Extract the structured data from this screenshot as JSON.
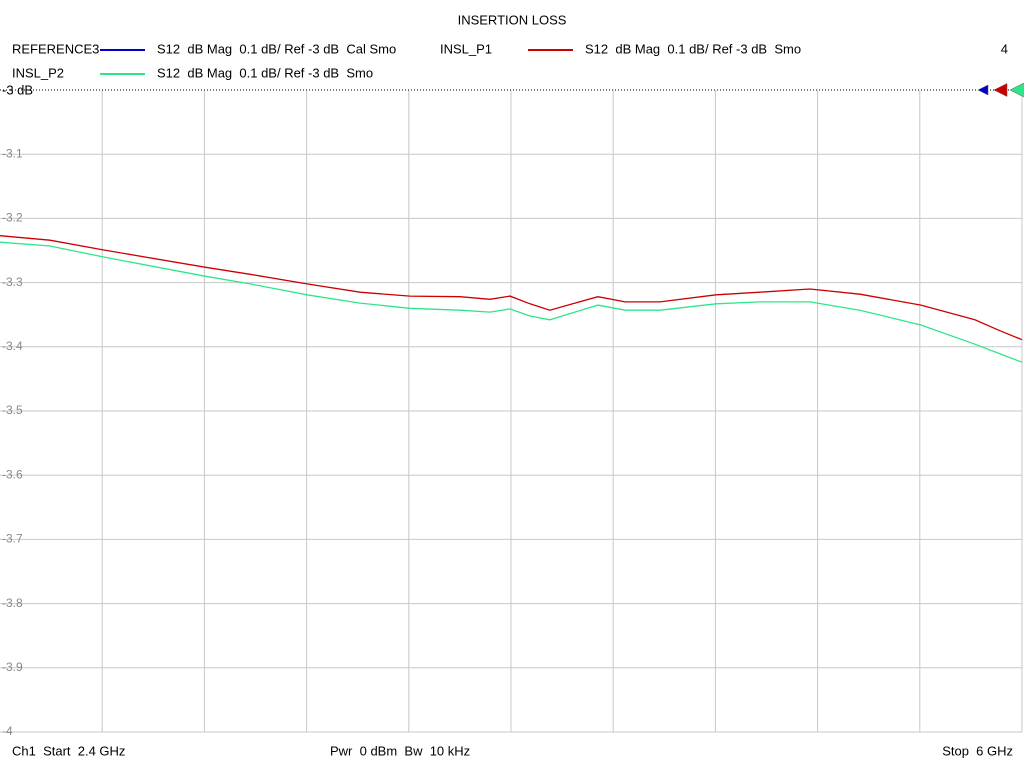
{
  "chart_data": {
    "type": "line",
    "title": "INSERTION LOSS",
    "x": [
      2.4,
      2.576,
      2.763,
      3.122,
      3.281,
      3.481,
      3.668,
      3.844,
      4.02,
      4.126,
      4.196,
      4.267,
      4.337,
      4.425,
      4.506,
      4.602,
      4.725,
      4.922,
      5.077,
      5.253,
      5.429,
      5.644,
      5.834,
      5.923,
      6.0
    ],
    "series": [
      {
        "name": "REFERENCE3",
        "description": "S12  dB Mag  0.1 dB/ Ref -3 dB  Cal Smo",
        "color": "#0000cc",
        "values": [
          null,
          null,
          null,
          null,
          null,
          null,
          null,
          null,
          null,
          null,
          null,
          null,
          null,
          null,
          null,
          null,
          null,
          null,
          null,
          null,
          null,
          null,
          null,
          null,
          null
        ]
      },
      {
        "name": "INSL_P1",
        "description": "S12  dB Mag  0.1 dB/ Ref -3 dB  Smo",
        "color": "#cc0000",
        "values": [
          -3.227,
          -3.234,
          -3.249,
          -3.276,
          -3.287,
          -3.302,
          -3.315,
          -3.321,
          -3.322,
          -3.326,
          -3.321,
          -3.333,
          -3.343,
          -3.332,
          -3.322,
          -3.33,
          -3.33,
          -3.319,
          -3.315,
          -3.31,
          -3.318,
          -3.335,
          -3.358,
          -3.375,
          -3.389
        ]
      },
      {
        "name": "INSL_P2",
        "description": "S12  dB Mag  0.1 dB/ Ref -3 dB  Smo",
        "color": "#2ee68a",
        "values": [
          -3.237,
          -3.243,
          -3.26,
          -3.29,
          -3.302,
          -3.319,
          -3.332,
          -3.34,
          -3.343,
          -3.346,
          -3.341,
          -3.352,
          -3.358,
          -3.346,
          -3.335,
          -3.343,
          -3.343,
          -3.333,
          -3.33,
          -3.33,
          -3.343,
          -3.366,
          -3.396,
          -3.411,
          -3.424
        ]
      }
    ],
    "xlim": [
      2.4,
      6
    ],
    "x_divisions": 10,
    "ylim": [
      -4,
      -3
    ],
    "yticks": [
      {
        "value": -3,
        "label": "-3 dB"
      },
      -3.1,
      -3.2,
      -3.3,
      -3.4,
      -3.5,
      -3.6,
      -3.7,
      -3.8,
      -3.9,
      -4
    ],
    "grid": true,
    "annotations": {
      "start": "Ch1  Start  2.4 GHz",
      "center": "Pwr  0 dBm  Bw  10 kHz",
      "stop": "Stop  6 GHz",
      "corner": "4"
    }
  }
}
